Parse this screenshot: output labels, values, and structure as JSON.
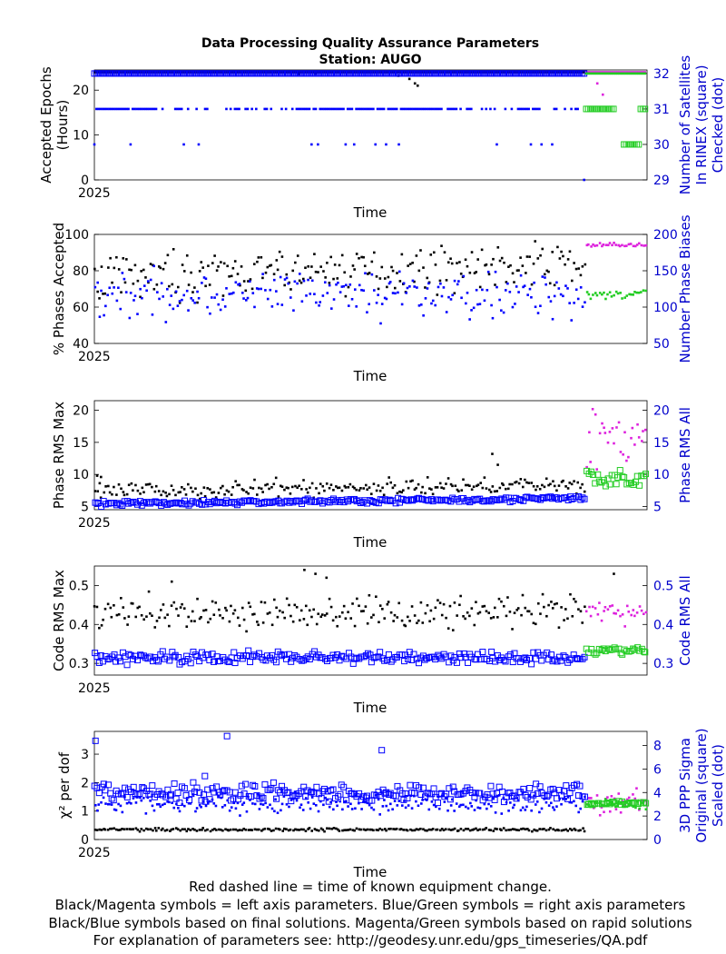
{
  "title_line1": "Data Processing Quality Assurance Parameters",
  "title_line2": "Station: AUGO",
  "footer": [
    "Red dashed line = time of known equipment change.",
    "Black/Magenta symbols = left axis parameters. Blue/Green symbols = right axis parameters",
    "Black/Blue symbols based on final solutions.  Magenta/Green symbols based on rapid solutions",
    "For explanation of parameters see: http://geodesy.unr.edu/gps_timeseries/QA.pdf"
  ],
  "colors": {
    "final_left": "#000000",
    "final_right": "#0000ff",
    "rapid_left": "#dd22dd",
    "rapid_right": "#22cc22",
    "right_axis_text": "#0000cc"
  },
  "chart_data": [
    {
      "type": "scatter",
      "xlabel": "Time",
      "x_tick_label": "2025",
      "ylabel": [
        "Accepted Epochs",
        "(Hours)"
      ],
      "ylim": [
        0,
        24.5
      ],
      "yticks": [
        0,
        10,
        20
      ],
      "y2label": [
        "Number of Satellites",
        "In RINEX (square)",
        "Checked (dot)"
      ],
      "y2lim": [
        29,
        32.1
      ],
      "y2ticks": [
        29,
        30,
        31,
        32
      ],
      "series": [
        {
          "side": "left",
          "solution": "final",
          "marker": "dot",
          "typical": 24.0,
          "dips": [
            [
              0.55,
              23.2
            ],
            [
              0.57,
              22.5
            ],
            [
              0.58,
              21.5
            ],
            [
              0.585,
              21.0
            ],
            [
              0.37,
              23.6
            ],
            [
              0.4,
              23.7
            ]
          ]
        },
        {
          "side": "left",
          "solution": "rapid",
          "marker": "dot",
          "typical": 24.0,
          "dips": [
            [
              0.92,
              19.0
            ],
            [
              0.91,
              21.5
            ]
          ]
        },
        {
          "side": "right",
          "solution": "final",
          "marker": "square",
          "typical": 32
        },
        {
          "side": "right",
          "solution": "final",
          "marker": "dot",
          "levels": [
            31,
            30,
            29
          ],
          "typical": 31
        },
        {
          "side": "right",
          "solution": "rapid",
          "marker": "square",
          "levels": [
            31,
            30
          ]
        },
        {
          "side": "right",
          "solution": "rapid",
          "marker": "dot",
          "levels": [
            32,
            31
          ]
        }
      ]
    },
    {
      "type": "scatter",
      "xlabel": "Time",
      "x_tick_label": "2025",
      "ylabel": [
        "% Phases Accepted"
      ],
      "ylim": [
        40,
        100
      ],
      "yticks": [
        40,
        60,
        80,
        100
      ],
      "y2label": [
        "Number Phase Biases"
      ],
      "y2lim": [
        50,
        200
      ],
      "y2ticks": [
        50,
        100,
        150,
        200
      ],
      "series": [
        {
          "side": "left",
          "solution": "final",
          "marker": "dot",
          "mean": 76,
          "spread": 10,
          "trend": 8
        },
        {
          "side": "left",
          "solution": "rapid",
          "marker": "dot",
          "mean": 94,
          "spread": 1.2
        },
        {
          "side": "right",
          "solution": "final",
          "marker": "dot",
          "mean": 118,
          "spread": 28
        },
        {
          "side": "right",
          "solution": "rapid",
          "marker": "dot",
          "mean": 118,
          "spread": 6
        }
      ]
    },
    {
      "type": "scatter",
      "xlabel": "Time",
      "x_tick_label": "2025",
      "ylabel": [
        "Phase RMS Max"
      ],
      "ylim": [
        4.5,
        21.5
      ],
      "yticks": [
        5,
        10,
        15,
        20
      ],
      "y2label": [
        "Phase RMS All"
      ],
      "y2lim": [
        4.5,
        21.5
      ],
      "y2ticks": [
        5,
        10,
        15,
        20
      ],
      "series": [
        {
          "side": "left",
          "solution": "final",
          "marker": "dot",
          "mean": 7.3,
          "spread": 1.1,
          "trend": 1.2,
          "outliers": [
            [
              0.005,
              9.8
            ],
            [
              0.012,
              9.6
            ],
            [
              0.72,
              13.2
            ],
            [
              0.73,
              11.5
            ]
          ]
        },
        {
          "side": "left",
          "solution": "rapid",
          "marker": "dot",
          "mean": 15.5,
          "spread": 3.8
        },
        {
          "side": "right",
          "solution": "final",
          "marker": "square",
          "mean": 5.4,
          "spread": 0.35,
          "trend": 0.9
        },
        {
          "side": "right",
          "solution": "rapid",
          "marker": "square",
          "mean": 9.3,
          "spread": 1.4
        }
      ]
    },
    {
      "type": "scatter",
      "xlabel": "Time",
      "x_tick_label": "2025",
      "ylabel": [
        "Code RMS Max"
      ],
      "ylim": [
        0.27,
        0.55
      ],
      "yticks": [
        0.3,
        0.4,
        0.5
      ],
      "y2label": [
        "Code RMS All"
      ],
      "y2lim": [
        0.27,
        0.55
      ],
      "y2ticks": [
        0.3,
        0.4,
        0.5
      ],
      "series": [
        {
          "side": "left",
          "solution": "final",
          "marker": "dot",
          "mean": 0.43,
          "spread": 0.035,
          "outliers": [
            [
              0.38,
              0.54
            ],
            [
              0.4,
              0.53
            ],
            [
              0.42,
              0.52
            ],
            [
              0.94,
              0.53
            ],
            [
              0.14,
              0.51
            ]
          ]
        },
        {
          "side": "left",
          "solution": "rapid",
          "marker": "dot",
          "mean": 0.43,
          "spread": 0.03
        },
        {
          "side": "right",
          "solution": "final",
          "marker": "square",
          "mean": 0.315,
          "spread": 0.014
        },
        {
          "side": "right",
          "solution": "rapid",
          "marker": "square",
          "mean": 0.333,
          "spread": 0.008
        }
      ]
    },
    {
      "type": "scatter",
      "xlabel": "Time",
      "x_tick_label": "2025",
      "ylabel": [
        "χ² per dof"
      ],
      "ylim": [
        0,
        3.8
      ],
      "yticks": [
        0,
        1,
        2,
        3
      ],
      "y2label": [
        "3D PPP Sigma",
        "Original (square)",
        "Scaled (dot)"
      ],
      "y2lim": [
        0,
        9.2
      ],
      "y2ticks": [
        0,
        2,
        4,
        6,
        8
      ],
      "series": [
        {
          "side": "left",
          "solution": "final",
          "marker": "dot",
          "mean": 0.35,
          "spread": 0.05
        },
        {
          "side": "left",
          "solution": "rapid",
          "marker": "dot",
          "mean": 1.25,
          "spread": 0.35
        },
        {
          "side": "right",
          "solution": "final",
          "marker": "square",
          "mean": 4.0,
          "spread": 0.7,
          "outliers": [
            [
              0.002,
              8.4
            ],
            [
              0.24,
              8.8
            ],
            [
              0.52,
              7.6
            ],
            [
              0.2,
              5.4
            ]
          ]
        },
        {
          "side": "right",
          "solution": "final",
          "marker": "dot",
          "mean": 3.0,
          "spread": 0.7
        },
        {
          "side": "right",
          "solution": "rapid",
          "marker": "square",
          "mean": 3.1,
          "spread": 0.15
        },
        {
          "side": "right",
          "solution": "rapid",
          "marker": "dot",
          "mean": 3.0,
          "spread": 0.3
        }
      ]
    }
  ]
}
